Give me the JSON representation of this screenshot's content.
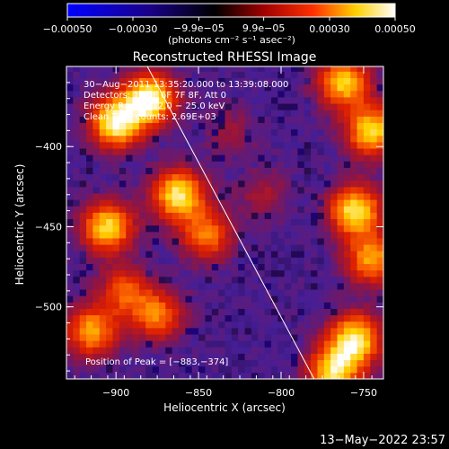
{
  "chart_data": {
    "type": "heatmap",
    "title": "Reconstructed RHESSI Image",
    "xlabel": "Heliocentric X (arcsec)",
    "ylabel": "Heliocentric Y (arcsec)",
    "xlim": [
      -930,
      -738
    ],
    "ylim": [
      -545,
      -350
    ],
    "x_ticks": [
      {
        "value": -900,
        "label": "−900"
      },
      {
        "value": -850,
        "label": "−850"
      },
      {
        "value": -800,
        "label": "−800"
      },
      {
        "value": -750,
        "label": "−750"
      }
    ],
    "y_ticks": [
      {
        "value": -400,
        "label": "−400"
      },
      {
        "value": -450,
        "label": "−450"
      },
      {
        "value": -500,
        "label": "−500"
      }
    ],
    "colorbar": {
      "range": [
        -0.0005,
        0.0005
      ],
      "unit_label": "(photons cm⁻² s⁻¹ asec⁻²)",
      "colormap": [
        "#0000ff",
        "#000000",
        "#ff0000",
        "#ffff00",
        "#ffffff"
      ],
      "ticks": [
        {
          "value": -0.0005,
          "label": "−0.00050",
          "row": "bottom"
        },
        {
          "value": -0.0003,
          "label": "−0.00030",
          "row": "bottom"
        },
        {
          "value": -9.9e-05,
          "label": "−9.9e−05",
          "row": "top"
        },
        {
          "value": 9.9e-05,
          "label": "9.9e−05",
          "row": "top"
        },
        {
          "value": 0.0003,
          "label": "0.00030",
          "row": "bottom"
        },
        {
          "value": 0.0005,
          "label": "0.00050",
          "row": "bottom"
        }
      ]
    },
    "annotations": [
      "30−Aug−2011 13:35:20.000 to 13:39:08.000",
      "Detectors: 1F 5F 6F 7F 8F, Att 0",
      "Energy Range: 12.0 − 25.0 keV",
      "Clean    Total counts: 2.69E+03"
    ],
    "peak_label": "Position of Peak = [−883,−374]",
    "limb_line": [
      [
        -881,
        -350
      ],
      [
        -780,
        -545
      ]
    ],
    "peak_sources": [
      {
        "x": -900,
        "y": -385,
        "value": 0.00048
      },
      {
        "x": -880,
        "y": -370,
        "value": 0.0005
      },
      {
        "x": -862,
        "y": -430,
        "value": 0.00045
      },
      {
        "x": -845,
        "y": -455,
        "value": 0.0003
      },
      {
        "x": -905,
        "y": -450,
        "value": 0.00042
      },
      {
        "x": -915,
        "y": -515,
        "value": 0.00035
      },
      {
        "x": -895,
        "y": -490,
        "value": 0.00025
      },
      {
        "x": -875,
        "y": -505,
        "value": 0.0003
      },
      {
        "x": -755,
        "y": -440,
        "value": 0.00045
      },
      {
        "x": -745,
        "y": -390,
        "value": 0.00042
      },
      {
        "x": -762,
        "y": -360,
        "value": 0.0004
      },
      {
        "x": -755,
        "y": -520,
        "value": 0.00045
      },
      {
        "x": -768,
        "y": -540,
        "value": 0.00042
      },
      {
        "x": -745,
        "y": -470,
        "value": 0.00035
      },
      {
        "x": -810,
        "y": -430,
        "value": 0.00012
      },
      {
        "x": -830,
        "y": -390,
        "value": 0.0001
      }
    ]
  },
  "footer": {
    "timestamp": "13−May−2022 23:57"
  }
}
